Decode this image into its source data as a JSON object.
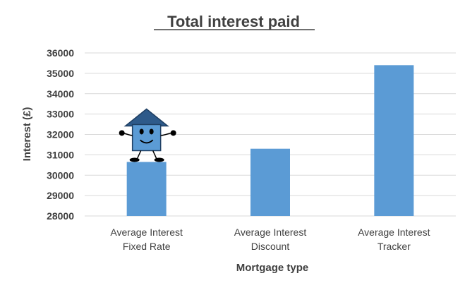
{
  "chart_data": {
    "type": "bar",
    "title": "Total interest paid",
    "xlabel": "Mortgage type",
    "ylabel": "Interest (£)",
    "categories": [
      [
        "Average Interest",
        "Fixed Rate"
      ],
      [
        "Average Interest",
        "Discount"
      ],
      [
        "Average Interest",
        "Tracker"
      ]
    ],
    "values": [
      30650,
      31300,
      35400
    ],
    "ylim": [
      28000,
      36000
    ],
    "yticks": [
      28000,
      29000,
      30000,
      31000,
      32000,
      33000,
      34000,
      35000,
      36000
    ],
    "grid": true,
    "legend": "none",
    "bar_color": "#5b9bd5",
    "grid_color": "#d9d9d9"
  },
  "mascot": {
    "icon": "house-mascot-icon",
    "roof_color": "#2e5a8a",
    "body_color": "#5b9bd5"
  }
}
